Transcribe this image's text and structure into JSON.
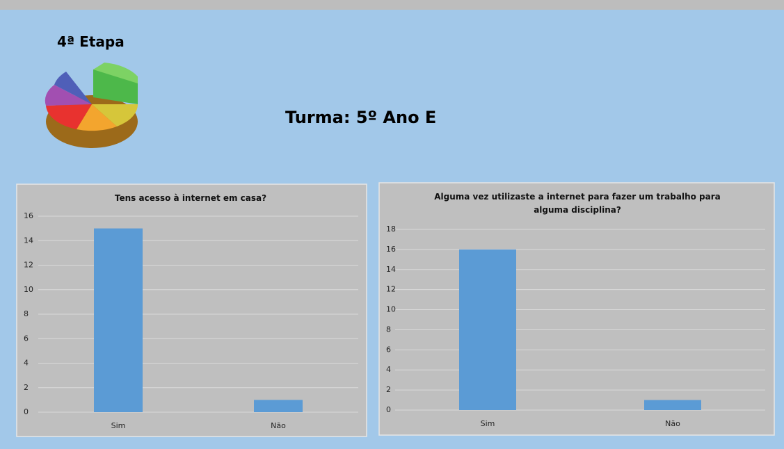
{
  "header": {
    "stage": "4ª Etapa",
    "class": "Turma: 5º Ano E"
  },
  "chart_data": [
    {
      "type": "bar",
      "title": "Tens acesso à internet em casa?",
      "categories": [
        "Sim",
        "Não"
      ],
      "values": [
        15,
        1
      ],
      "color": "#5b9bd5",
      "ylim": [
        0,
        16
      ],
      "yticks": [
        0,
        2,
        4,
        6,
        8,
        10,
        12,
        14,
        16
      ],
      "grid": true
    },
    {
      "type": "bar",
      "title": "Alguma vez utilizaste a internet para fazer um trabalho para alguma disciplina?",
      "categories": [
        "Sim",
        "Não"
      ],
      "values": [
        16,
        1
      ],
      "color": "#5b9bd5",
      "ylim": [
        0,
        18
      ],
      "yticks": [
        0,
        2,
        4,
        6,
        8,
        10,
        12,
        14,
        16,
        18
      ],
      "grid": true
    }
  ]
}
